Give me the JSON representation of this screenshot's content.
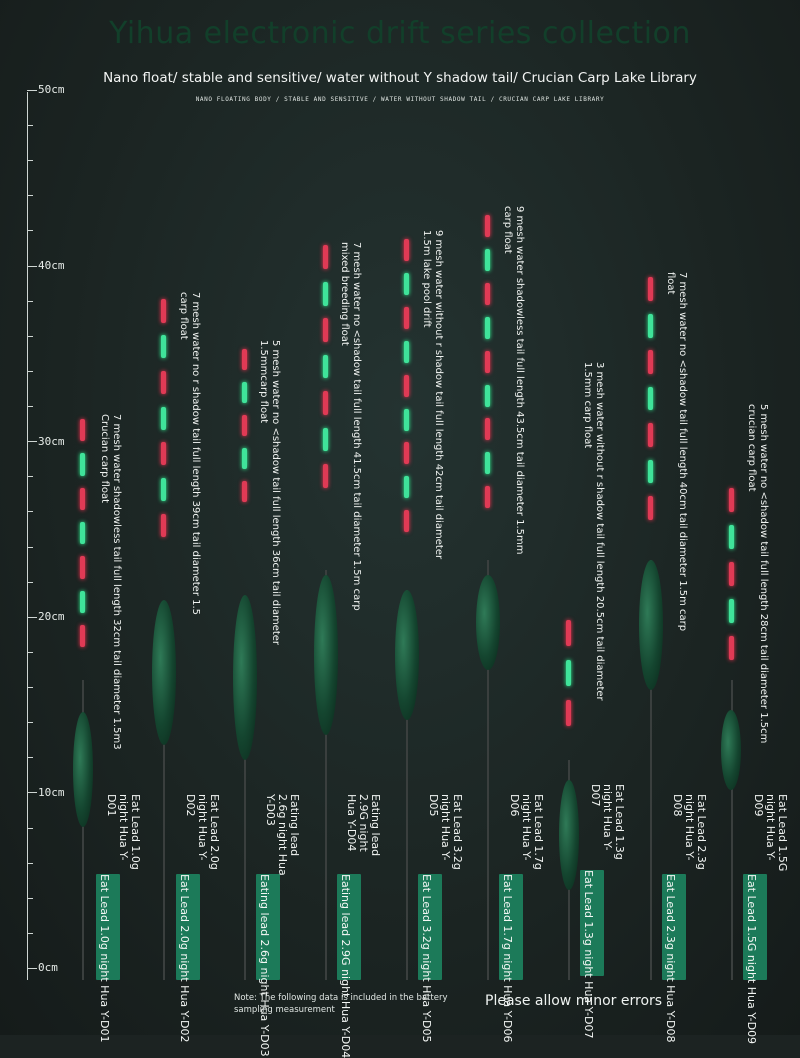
{
  "header": {
    "title": "Yihua electronic drift series collection",
    "subtitle": "Nano float/ stable and sensitive/ water without Y shadow tail/ Crucian Carp Lake Library",
    "tiny_caption": "NANO FLOATING BODY / STABLE AND SENSITIVE / WATER WITHOUT SHADOW TAIL / CRUCIAN CARP LAKE LIBRARY"
  },
  "ruler": {
    "labels": [
      "50cm",
      "40cm",
      "30cm",
      "20cm",
      "10cm",
      "0cm"
    ]
  },
  "floats": [
    {
      "model": "Y-D01",
      "lead": "Eat Lead 1.0g night Hua Y-D01",
      "description": "7 mesh water shadowless tail full length 32cm tail diameter 1.5m3 Crucian carp float",
      "tip_pattern": [
        "red",
        "green",
        "red",
        "green",
        "red",
        "green",
        "red"
      ]
    },
    {
      "model": "Y-D02",
      "lead": "Eat Lead 2.0g night Hua Y-D02",
      "description": "7 mesh water no r shadow tail full length 39cm tail diameter 1.5 carp float",
      "tip_pattern": [
        "red",
        "green",
        "red",
        "green",
        "red",
        "green",
        "red"
      ]
    },
    {
      "model": "Y-D03",
      "lead": "Eating lead 2.6g night Hua Y-D03",
      "description": "5 mesh water no <shadow tail full length 36cm tail diameter 1.5mmcarp float",
      "tip_pattern": [
        "red",
        "green",
        "red",
        "green",
        "red"
      ]
    },
    {
      "model": "Y-D04",
      "lead": "Eating lead 2.9G night Hua Y-D04",
      "description": "7 mesh water no <shadow tail full length 41.5cm tail diameter 1.5m carp mixed breeding float",
      "tip_pattern": [
        "red",
        "green",
        "red",
        "green",
        "red",
        "green",
        "red"
      ]
    },
    {
      "model": "Y-D05",
      "lead": "Eat Lead 3.2g night Hua Y-D05",
      "description": "9 mesh water without r shadow tail full length 42cm tail diameter 1.5m lake pool drift",
      "tip_pattern": [
        "red",
        "green",
        "red",
        "green",
        "red",
        "green",
        "red",
        "green",
        "red"
      ]
    },
    {
      "model": "Y-D06",
      "lead": "Eat Lead 1.7g night Hua Y-D06",
      "description": "9 mesh water shadowless tail full length 43.5cm tail diameter 1.5mm carp float",
      "tip_pattern": [
        "red",
        "green",
        "red",
        "green",
        "red",
        "green",
        "red",
        "green",
        "red"
      ]
    },
    {
      "model": "Y-D07",
      "lead": "Eat Lead 1.3g night Hua Y-D07",
      "description": "3 mesh water without r shadow tail full length 20.5cm tail diameter 1.5mm carp float",
      "tip_pattern": [
        "red",
        "green",
        "red"
      ]
    },
    {
      "model": "Y-D08",
      "lead": "Eat Lead 2.3g night Hua Y-D08",
      "description": "7 mesh water no <shadow tail full length 40cm tail diameter 1.5m carp float",
      "tip_pattern": [
        "red",
        "green",
        "red",
        "green",
        "red",
        "green",
        "red"
      ]
    },
    {
      "model": "Y-D09",
      "lead": "Eat Lead 1.5G night Hua Y-D09",
      "description": "5 mesh water no <shadow tail full length 28cm tail diameter 1.5cm crucian carp float",
      "tip_pattern": [
        "red",
        "green",
        "red",
        "green",
        "red"
      ]
    }
  ],
  "footer": {
    "note": "Note: The following data is included in the battery sampling measurement",
    "errors": "Please allow minor errors"
  },
  "colors": {
    "background": "#1c2322",
    "title": "#123f2a",
    "tag": "#1c7a59",
    "led_red": "#e03a55",
    "led_green": "#3fe39a",
    "float_body": "#14452f"
  }
}
